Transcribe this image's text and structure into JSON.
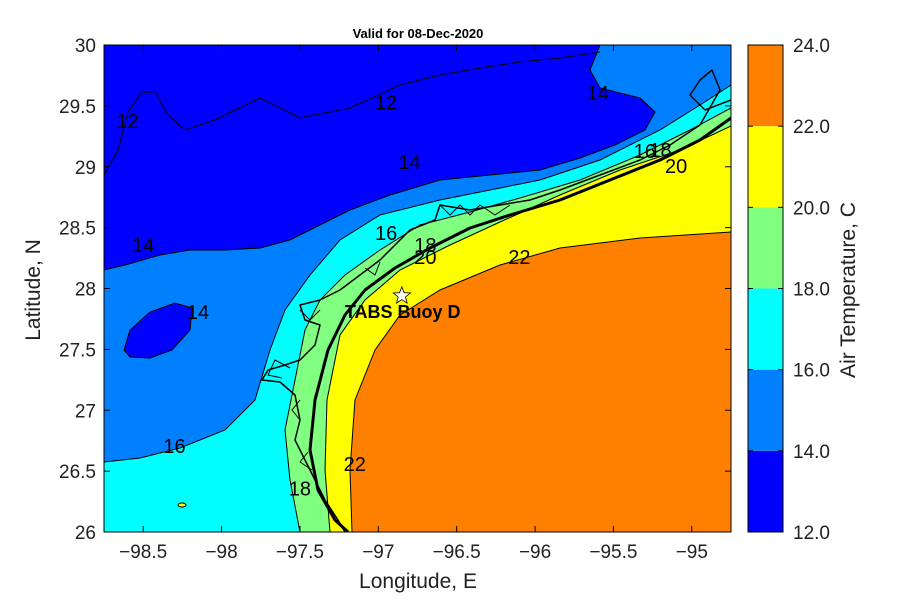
{
  "chart_data": {
    "type": "contour-map",
    "title": "Valid for 08-Dec-2020",
    "xlabel": "Longitude, E",
    "ylabel": "Latitude, N",
    "xlim": [
      -98.75,
      -94.75
    ],
    "ylim": [
      26,
      30
    ],
    "xticks": [
      -98.5,
      -98,
      -97.5,
      -97,
      -96.5,
      -96,
      -95.5,
      -95
    ],
    "yticks": [
      26,
      26.5,
      27,
      27.5,
      28,
      28.5,
      29,
      29.5,
      30
    ],
    "colorbar": {
      "label": "Air Temperature, C",
      "ticks": [
        "12.0",
        "14.0",
        "16.0",
        "18.0",
        "20.0",
        "22.0",
        "24.0"
      ],
      "bands": [
        {
          "min": 12,
          "max": 14,
          "color": "#0000FF"
        },
        {
          "min": 14,
          "max": 16,
          "color": "#0080FF"
        },
        {
          "min": 16,
          "max": 18,
          "color": "#00FFFF"
        },
        {
          "min": 18,
          "max": 20,
          "color": "#80FF80"
        },
        {
          "min": 20,
          "max": 22,
          "color": "#FFFF00"
        },
        {
          "min": 22,
          "max": 24,
          "color": "#FF8000"
        }
      ]
    },
    "contour_labels": [
      {
        "text": "12",
        "lon": -98.6,
        "lat": 29.32
      },
      {
        "text": "12",
        "lon": -96.95,
        "lat": 29.47
      },
      {
        "text": "14",
        "lon": -95.6,
        "lat": 29.55
      },
      {
        "text": "14",
        "lon": -96.8,
        "lat": 28.98
      },
      {
        "text": "14",
        "lon": -98.5,
        "lat": 28.3
      },
      {
        "text": "14",
        "lon": -98.15,
        "lat": 27.75
      },
      {
        "text": "16",
        "lon": -96.95,
        "lat": 28.4
      },
      {
        "text": "16",
        "lon": -95.3,
        "lat": 29.07
      },
      {
        "text": "16",
        "lon": -98.3,
        "lat": 26.65
      },
      {
        "text": "18",
        "lon": -96.7,
        "lat": 28.3
      },
      {
        "text": "18",
        "lon": -95.2,
        "lat": 29.08
      },
      {
        "text": "18",
        "lon": -97.5,
        "lat": 26.3
      },
      {
        "text": "20",
        "lon": -96.7,
        "lat": 28.2
      },
      {
        "text": "20",
        "lon": -95.1,
        "lat": 28.95
      },
      {
        "text": "22",
        "lon": -96.1,
        "lat": 28.2
      },
      {
        "text": "22",
        "lon": -97.15,
        "lat": 26.5
      }
    ],
    "station": {
      "name": "TABS Buoy D",
      "lon": -96.85,
      "lat": 27.94
    }
  }
}
